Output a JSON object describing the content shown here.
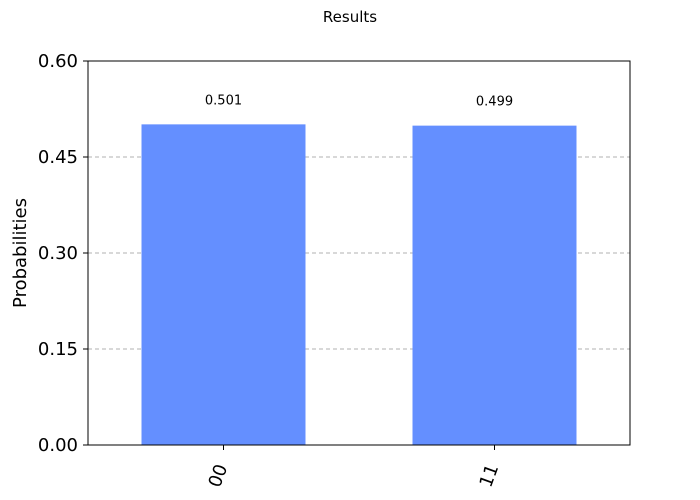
{
  "chart_data": {
    "type": "bar",
    "title": "Results",
    "xlabel": "",
    "ylabel": "Probabilities",
    "categories": [
      "00",
      "11"
    ],
    "values": [
      0.501,
      0.499
    ],
    "data_labels": [
      "0.501",
      "0.499"
    ],
    "ylim": [
      0,
      0.6
    ],
    "yticks": [
      0.0,
      0.15,
      0.3,
      0.45,
      0.6
    ],
    "ytick_labels": [
      "0.00",
      "0.15",
      "0.30",
      "0.45",
      "0.60"
    ],
    "grid": true,
    "bar_color": "#648FFF",
    "grid_color": "#B0B0B0",
    "axis_color": "#000000"
  }
}
